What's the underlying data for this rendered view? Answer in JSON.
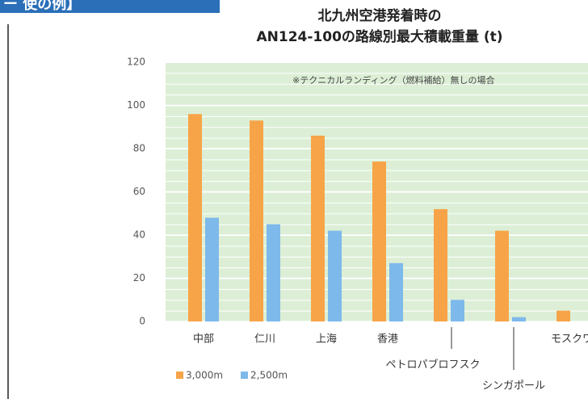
{
  "header": {
    "banner": "ー 使の例】"
  },
  "chart_data": {
    "type": "bar",
    "title_lines": [
      "北九州空港発着時の",
      "AN124-100の路線別最大積載重量 (t)"
    ],
    "annotation": "※テクニカルランディング（燃料補給）無しの場合",
    "categories": [
      "中部",
      "仁川",
      "上海",
      "香港",
      "ペトロパブロフスク",
      "シンガポール",
      "モスクワ"
    ],
    "series": [
      {
        "name": "3,000m",
        "color": "#f7a448",
        "values": [
          96,
          93,
          86,
          74,
          52,
          42,
          5
        ]
      },
      {
        "name": "2,500m",
        "color": "#7db9ea",
        "values": [
          48,
          45,
          42,
          27,
          10,
          2,
          0
        ]
      }
    ],
    "ylim": [
      0,
      120
    ],
    "yticks": [
      0,
      20,
      40,
      60,
      80,
      100,
      120
    ],
    "grid": true
  }
}
